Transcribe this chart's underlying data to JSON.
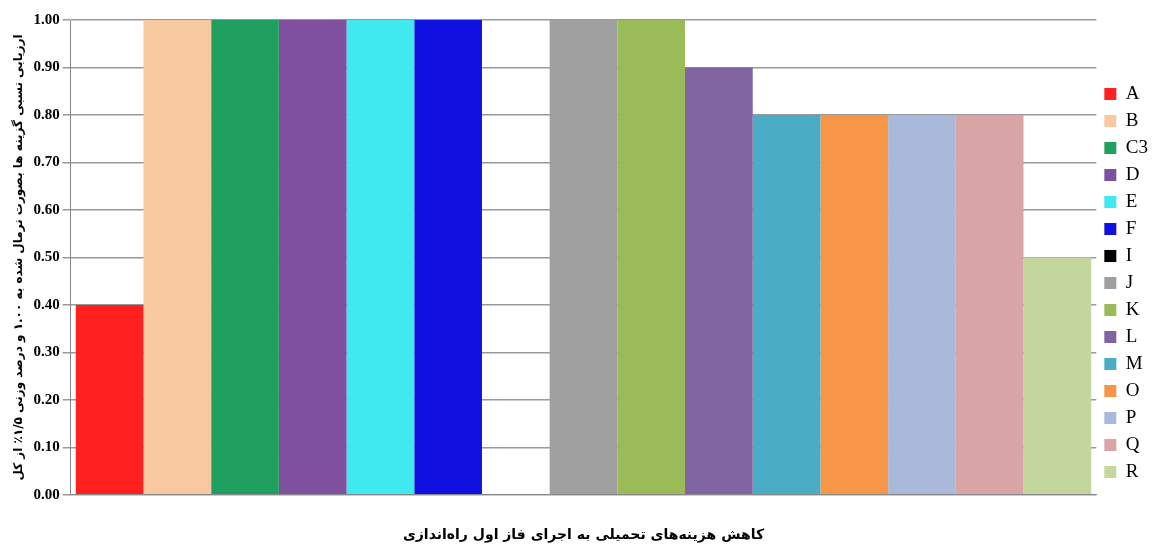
{
  "chart_data": {
    "type": "bar",
    "xlabel": "کاهش هزینه‌های تحمیلی به اجرای فاز اول راه‌اندازی",
    "ylabel": "ارزیابی نسبی گزینه ها بصورت نرمال شده به ۱.۰۰ و درصد وزنی ۱/۵٪ از کل",
    "categories": [
      null
    ],
    "series": [
      {
        "name": "A",
        "color": "#ff2020",
        "values": [
          0.4
        ]
      },
      {
        "name": "B",
        "color": "#f8c8a0",
        "values": [
          1.0
        ]
      },
      {
        "name": "C3",
        "color": "#20a060",
        "values": [
          1.0
        ]
      },
      {
        "name": "D",
        "color": "#8050a0",
        "values": [
          1.0
        ]
      },
      {
        "name": "E",
        "color": "#40e8f0",
        "values": [
          1.0
        ]
      },
      {
        "name": "F",
        "color": "#1010e0",
        "values": [
          1.0
        ]
      },
      {
        "name": "I",
        "color": "#000000",
        "values": [
          0
        ]
      },
      {
        "name": "J",
        "color": "#a0a0a0",
        "values": [
          1.0
        ]
      },
      {
        "name": "K",
        "color": "#9bbb59",
        "values": [
          1.0
        ]
      },
      {
        "name": "L",
        "color": "#8064a2",
        "values": [
          0.9
        ]
      },
      {
        "name": "M",
        "color": "#4bacc6",
        "values": [
          0.8
        ]
      },
      {
        "name": "O",
        "color": "#f79646",
        "values": [
          0.8
        ]
      },
      {
        "name": "P",
        "color": "#a9b9d9",
        "values": [
          0.8
        ]
      },
      {
        "name": "Q",
        "color": "#d9a4a6",
        "values": [
          0.8
        ]
      },
      {
        "name": "R",
        "color": "#c3d69b",
        "values": [
          0.5
        ]
      }
    ],
    "ylim": [
      0,
      1
    ],
    "yticks": [
      {
        "value": 0,
        "label": "0.00"
      },
      {
        "value": 0.1,
        "label": "0.10"
      },
      {
        "value": 0.2,
        "label": "0.20"
      },
      {
        "value": 0.3,
        "label": "0.30"
      },
      {
        "value": 0.4,
        "label": "0.40"
      },
      {
        "value": 0.5,
        "label": "0.50"
      },
      {
        "value": 0.6,
        "label": "0.60"
      },
      {
        "value": 0.7,
        "label": "0.70"
      },
      {
        "value": 0.8,
        "label": "0.80"
      },
      {
        "value": 0.9,
        "label": "0.90"
      },
      {
        "value": 1,
        "label": "1.00"
      }
    ],
    "grid": "y",
    "legend": "right"
  }
}
